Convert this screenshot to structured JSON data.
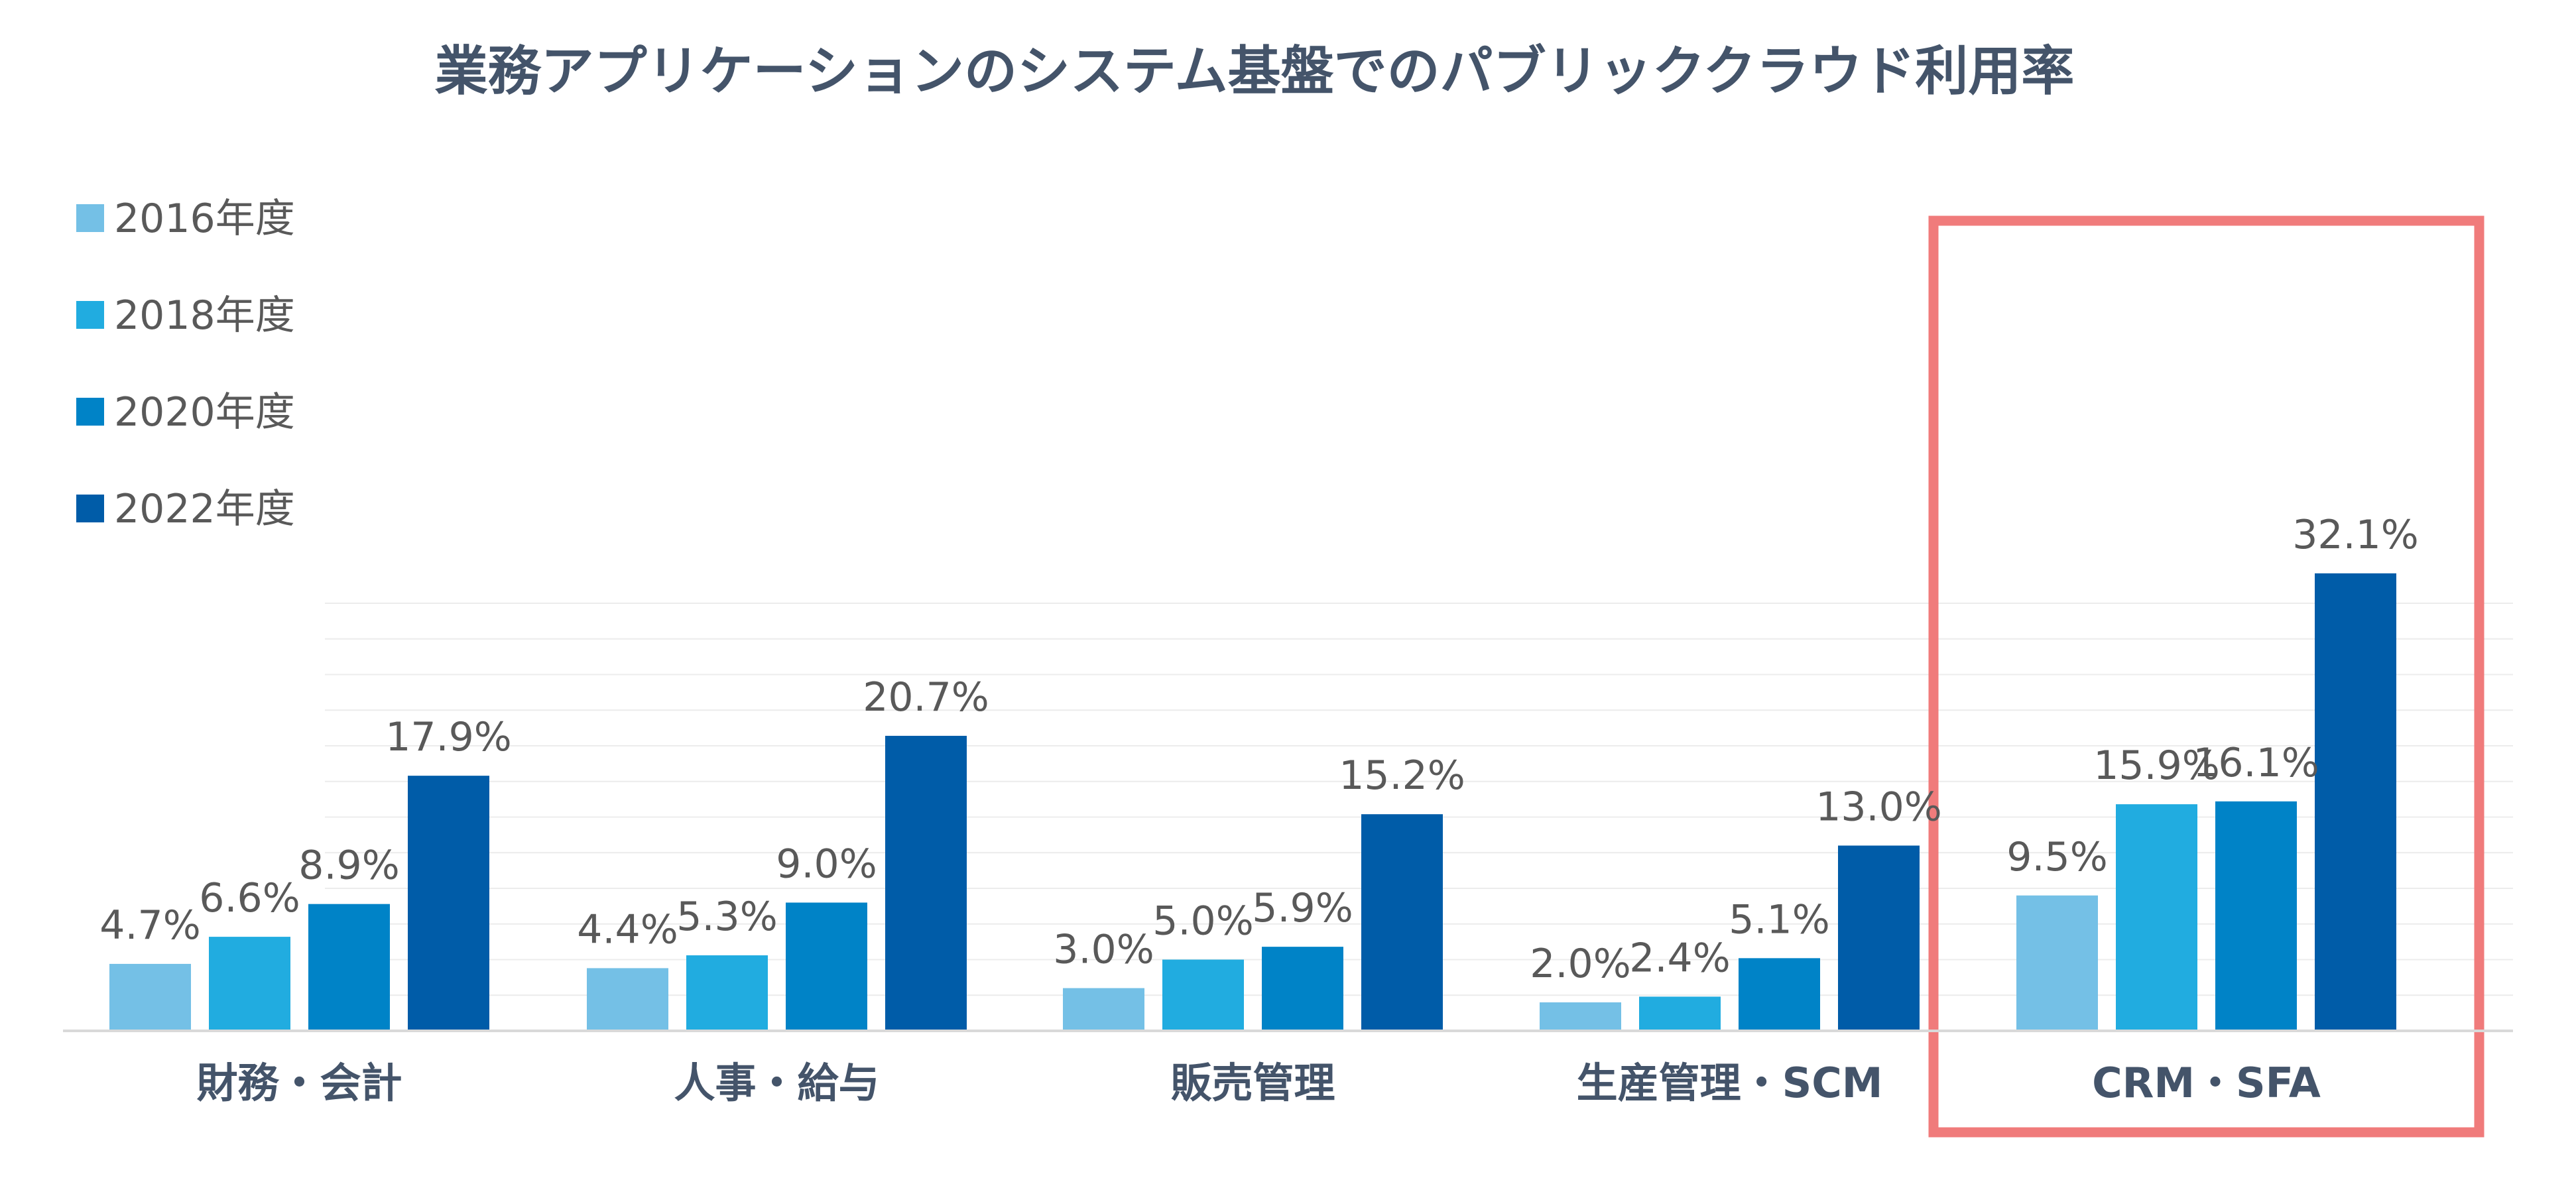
{
  "chart_data": {
    "type": "bar",
    "title": "業務アプリケーションのシステム基盤でのパブリッククラウド利用率",
    "xlabel": "",
    "ylabel": "",
    "ylim": [
      0,
      35
    ],
    "grid": true,
    "legend_position": "top-left",
    "categories": [
      "財務・会計",
      "人事・給与",
      "販売管理",
      "生産管理・SCM",
      "CRM・SFA"
    ],
    "highlighted_category": "CRM・SFA",
    "value_format": "%",
    "series": [
      {
        "name": "2016年度",
        "color": "#74c0e6",
        "values": [
          4.7,
          4.4,
          3.0,
          2.0,
          9.5
        ]
      },
      {
        "name": "2018年度",
        "color": "#21ace0",
        "values": [
          6.6,
          5.3,
          5.0,
          2.4,
          15.9
        ]
      },
      {
        "name": "2020年度",
        "color": "#0083c7",
        "values": [
          8.9,
          9.0,
          5.9,
          5.1,
          16.1
        ]
      },
      {
        "name": "2022年度",
        "color": "#005ca8",
        "values": [
          17.9,
          20.7,
          15.2,
          13.0,
          32.1
        ]
      }
    ]
  },
  "colors": {
    "title": "#44546a",
    "text": "#595959",
    "category_text": "#44546a",
    "grid": "#ececec",
    "axis": "#d9d9d9",
    "highlight": "#f07b7b"
  }
}
